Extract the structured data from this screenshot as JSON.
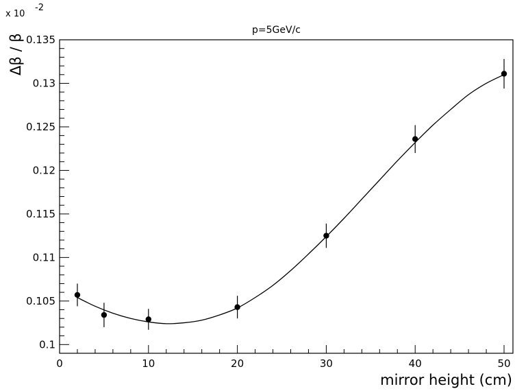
{
  "chart_data": {
    "type": "scatter",
    "title": "p=5GeV/c",
    "xlabel": "mirror height (cm)",
    "ylabel": "Δβ / β",
    "y_scale_multiplier": "x 10",
    "y_scale_exponent": "-2",
    "xlim": [
      0,
      51
    ],
    "ylim": [
      0.099,
      0.135
    ],
    "x_ticks": [
      0,
      10,
      20,
      30,
      40,
      50
    ],
    "x_tick_labels": [
      "0",
      "10",
      "20",
      "30",
      "40",
      "50"
    ],
    "y_ticks": [
      0.1,
      0.105,
      0.11,
      0.115,
      0.12,
      0.125,
      0.13,
      0.135
    ],
    "y_tick_labels": [
      "0.1",
      "0.105",
      "0.11",
      "0.115",
      "0.12",
      "0.125",
      "0.13",
      "0.135"
    ],
    "grid": false,
    "series": [
      {
        "x": [
          2,
          5,
          10,
          20,
          30,
          40,
          50
        ],
        "y": [
          0.1057,
          0.1034,
          0.1029,
          0.1043,
          0.1125,
          0.1236,
          0.1311
        ],
        "yerr": [
          0.0013,
          0.0014,
          0.0012,
          0.0013,
          0.0014,
          0.0016,
          0.0017
        ]
      }
    ],
    "fit_curve": {
      "x": [
        2,
        4,
        6,
        8,
        10,
        12,
        14,
        16,
        18,
        20,
        22,
        24,
        26,
        28,
        30,
        32,
        34,
        36,
        38,
        40,
        42,
        44,
        46,
        48,
        50
      ],
      "y": [
        0.1054,
        0.1044,
        0.1036,
        0.103,
        0.1026,
        0.1024,
        0.1025,
        0.1028,
        0.1034,
        0.1042,
        0.1054,
        0.1068,
        0.1085,
        0.1104,
        0.1124,
        0.1145,
        0.1167,
        0.1189,
        0.1211,
        0.1232,
        0.1252,
        0.127,
        0.1287,
        0.13,
        0.131
      ]
    }
  }
}
